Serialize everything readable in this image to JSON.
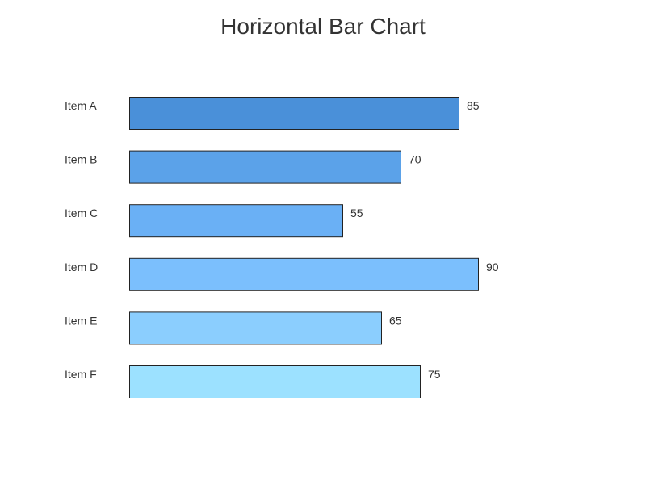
{
  "chart_data": {
    "type": "bar",
    "orientation": "horizontal",
    "title": "Horizontal Bar Chart",
    "xlabel": "",
    "ylabel": "",
    "xlim": [
      0,
      100
    ],
    "categories": [
      "Item A",
      "Item B",
      "Item C",
      "Item D",
      "Item E",
      "Item F"
    ],
    "values": [
      85,
      70,
      55,
      90,
      65,
      75
    ],
    "colors": [
      "#4a90d9",
      "#5ba2e9",
      "#6ab0f5",
      "#7bbffd",
      "#8bcefe",
      "#9ce1ff"
    ],
    "grid": false,
    "legend": "none"
  }
}
